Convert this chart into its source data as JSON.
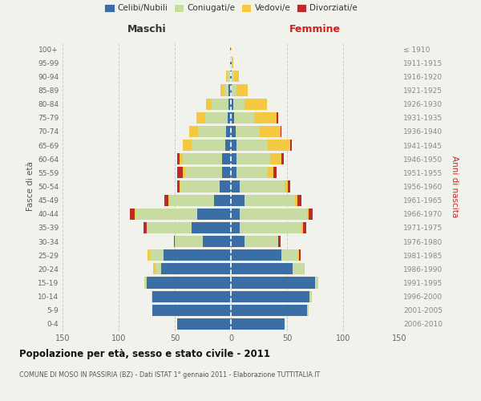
{
  "age_groups": [
    "0-4",
    "5-9",
    "10-14",
    "15-19",
    "20-24",
    "25-29",
    "30-34",
    "35-39",
    "40-44",
    "45-49",
    "50-54",
    "55-59",
    "60-64",
    "65-69",
    "70-74",
    "75-79",
    "80-84",
    "85-89",
    "90-94",
    "95-99",
    "100+"
  ],
  "birth_years": [
    "2006-2010",
    "2001-2005",
    "1996-2000",
    "1991-1995",
    "1986-1990",
    "1981-1985",
    "1976-1980",
    "1971-1975",
    "1966-1970",
    "1961-1965",
    "1956-1960",
    "1951-1955",
    "1946-1950",
    "1941-1945",
    "1936-1940",
    "1931-1935",
    "1926-1930",
    "1921-1925",
    "1916-1920",
    "1911-1915",
    "≤ 1910"
  ],
  "male_celibi": [
    48,
    70,
    70,
    75,
    62,
    60,
    25,
    35,
    30,
    15,
    10,
    8,
    8,
    5,
    4,
    3,
    2,
    2,
    1,
    1,
    1
  ],
  "male_coniugati": [
    0,
    0,
    1,
    2,
    5,
    12,
    25,
    40,
    55,
    40,
    35,
    33,
    35,
    30,
    25,
    20,
    15,
    4,
    2,
    0,
    0
  ],
  "male_vedovi": [
    0,
    0,
    0,
    0,
    2,
    2,
    0,
    0,
    1,
    1,
    1,
    2,
    3,
    8,
    8,
    8,
    5,
    3,
    1,
    0,
    0
  ],
  "male_divorziati": [
    0,
    0,
    0,
    0,
    0,
    0,
    1,
    3,
    4,
    3,
    2,
    5,
    2,
    0,
    0,
    0,
    0,
    0,
    0,
    0,
    0
  ],
  "female_celibi": [
    48,
    68,
    70,
    75,
    55,
    45,
    12,
    8,
    8,
    12,
    8,
    5,
    5,
    5,
    4,
    3,
    2,
    1,
    1,
    1,
    0
  ],
  "female_coniugati": [
    0,
    1,
    2,
    3,
    10,
    15,
    30,
    55,
    60,
    45,
    40,
    28,
    30,
    28,
    22,
    18,
    10,
    4,
    2,
    0,
    0
  ],
  "female_vedovi": [
    0,
    0,
    0,
    0,
    1,
    1,
    0,
    1,
    1,
    2,
    3,
    5,
    10,
    20,
    18,
    20,
    20,
    10,
    4,
    1,
    1
  ],
  "female_divorziati": [
    0,
    0,
    0,
    0,
    0,
    1,
    2,
    3,
    4,
    4,
    2,
    3,
    2,
    1,
    1,
    1,
    0,
    0,
    0,
    0,
    0
  ],
  "color_celibi": "#3b6ea5",
  "color_coniugati": "#c8dba0",
  "color_vedovi": "#f5c842",
  "color_divorziati": "#c0282a",
  "title": "Popolazione per età, sesso e stato civile - 2011",
  "subtitle": "COMUNE DI MOSO IN PASSIRIA (BZ) - Dati ISTAT 1° gennaio 2011 - Elaborazione TUTTITALIA.IT",
  "label_maschi": "Maschi",
  "label_femmine": "Femmine",
  "ylabel_left": "Fasce di età",
  "ylabel_right": "Anni di nascita",
  "xlim": 150,
  "bg_color": "#f2f2ed",
  "grid_color": "#cccccc",
  "xticks": [
    150,
    100,
    50,
    0,
    50,
    100,
    150
  ]
}
